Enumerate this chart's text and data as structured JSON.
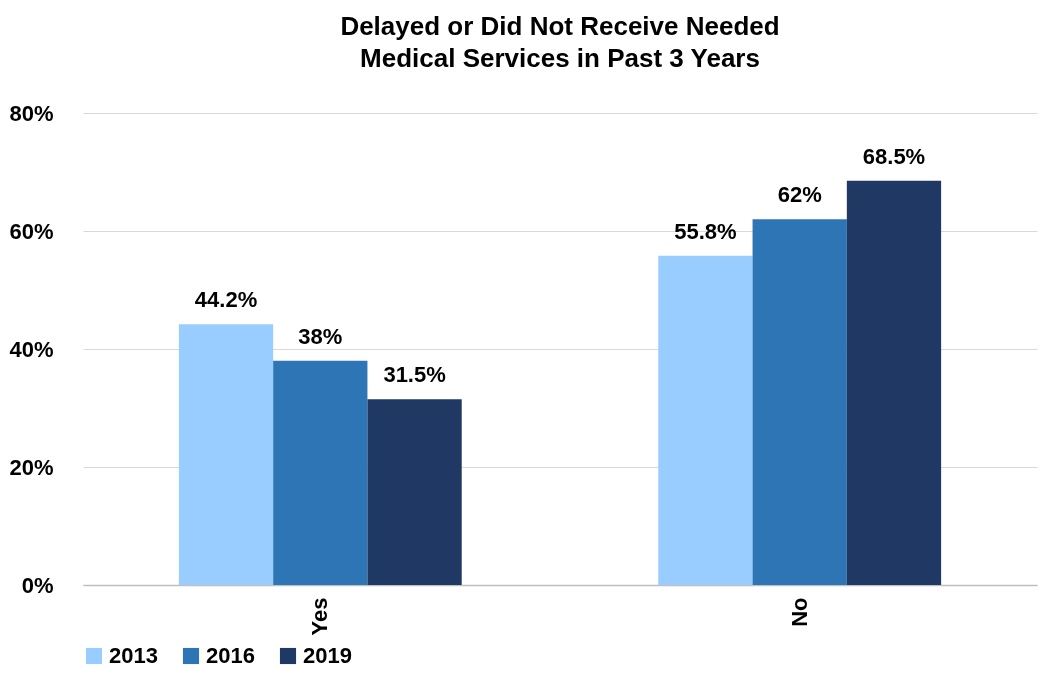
{
  "chart_data": {
    "type": "bar",
    "title": "Delayed or Did Not Receive Needed\nMedical Services in Past 3 Years",
    "categories": [
      "Yes",
      "No"
    ],
    "series": [
      {
        "name": "2013",
        "color": "#99ccff",
        "values": [
          44.2,
          55.8
        ],
        "value_labels": [
          "44.2%",
          "55.8%"
        ]
      },
      {
        "name": "2016",
        "color": "#2e75b6",
        "values": [
          38,
          62
        ],
        "value_labels": [
          "38%",
          "62%"
        ]
      },
      {
        "name": "2019",
        "color": "#203864",
        "values": [
          31.5,
          68.5
        ],
        "value_labels": [
          "31.5%",
          "68.5%"
        ]
      }
    ],
    "ylim": [
      0,
      80
    ],
    "yticks": [
      {
        "value": 0,
        "label": "0%"
      },
      {
        "value": 20,
        "label": "20%"
      },
      {
        "value": 40,
        "label": "40%"
      },
      {
        "value": 60,
        "label": "60%"
      },
      {
        "value": 80,
        "label": "80%"
      }
    ],
    "grid": "y",
    "legend": "bottom"
  }
}
